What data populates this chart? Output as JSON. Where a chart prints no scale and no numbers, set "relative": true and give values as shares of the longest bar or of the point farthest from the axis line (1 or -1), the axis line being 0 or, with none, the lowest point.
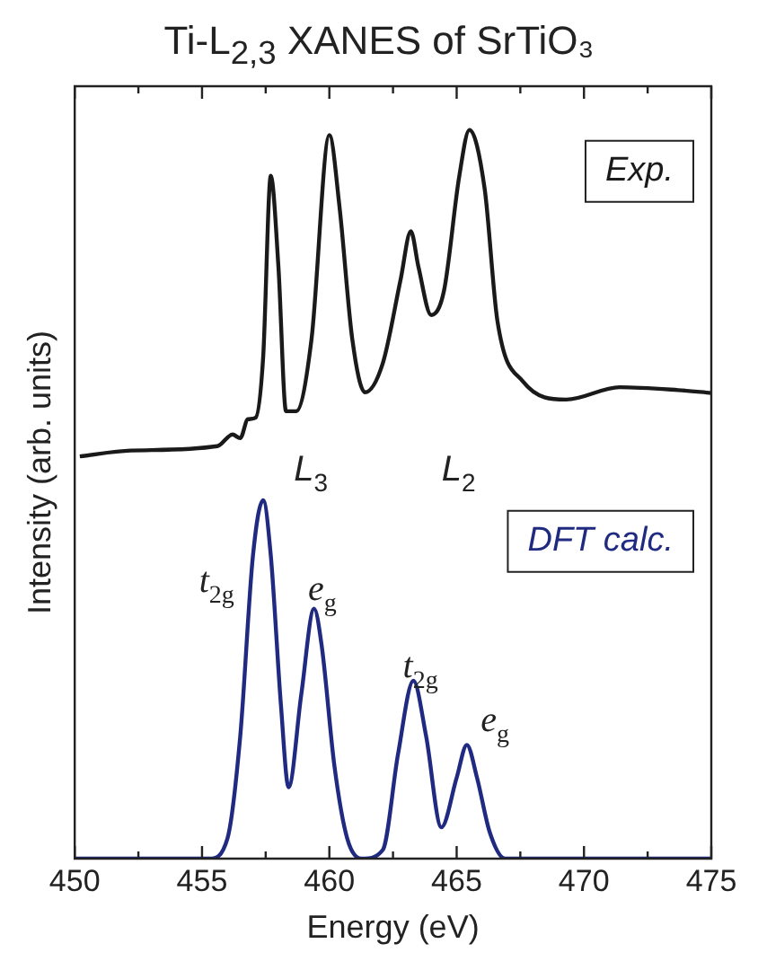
{
  "chart_data": {
    "type": "line",
    "title": "Ti-L$_{2,3}$ XANES of SrTiO₃",
    "xlabel": "Energy (eV)",
    "ylabel": "Intensity (arb. units)",
    "relative": true,
    "legend": false,
    "grid": false,
    "marker": "none",
    "line_style": "solid",
    "xlim": [
      450,
      475
    ],
    "xticks": [
      450,
      {
        "value": 452.5,
        "label": null
      },
      455,
      {
        "value": 457.5,
        "label": null
      },
      460,
      {
        "value": 462.5,
        "label": null
      },
      465,
      {
        "value": 467.5,
        "label": null
      },
      470,
      {
        "value": 472.5,
        "label": null
      },
      475
    ],
    "series": [
      {
        "name": "Exp.",
        "color": "#1a1a1a",
        "x": [
          450.2,
          452.2,
          455.6,
          456.2,
          456.5,
          456.8,
          457.1,
          457.4,
          457.7,
          458.0,
          458.3,
          458.7,
          459.3,
          460.0,
          460.4,
          460.9,
          461.4,
          462.1,
          462.8,
          463.2,
          463.5,
          464.0,
          464.5,
          465.1,
          465.5,
          466.1,
          466.6,
          467.6,
          469.3,
          471.4,
          473.7,
          475.0
        ],
        "values": [
          0.552,
          0.56,
          0.566,
          0.582,
          0.577,
          0.603,
          0.605,
          0.688,
          0.937,
          0.812,
          0.614,
          0.614,
          0.713,
          0.993,
          0.894,
          0.713,
          0.64,
          0.68,
          0.795,
          0.861,
          0.812,
          0.746,
          0.779,
          0.936,
          1,
          0.919,
          0.738,
          0.655,
          0.63,
          0.647,
          0.643,
          0.639
        ]
      },
      {
        "name": "DFT calc.",
        "color": "#1f2a80",
        "x": [
          450,
          455.3,
          456.0,
          456.5,
          457.0,
          457.4,
          457.7,
          458.1,
          458.4,
          458.9,
          459.4,
          459.7,
          460.2,
          460.7,
          461.3,
          462.1,
          462.7,
          463.3,
          463.8,
          464.4,
          465.0,
          465.4,
          465.8,
          466.3,
          466.9,
          475
        ],
        "values": [
          0,
          0,
          0.028,
          0.168,
          0.416,
          0.492,
          0.416,
          0.21,
          0.098,
          0.226,
          0.343,
          0.292,
          0.127,
          0.028,
          0,
          0.012,
          0.144,
          0.244,
          0.168,
          0.043,
          0.111,
          0.156,
          0.111,
          0.036,
          0,
          0
        ]
      }
    ],
    "annotations": [
      "L$_{3}$",
      "L$_{2}$",
      "t$_{2g}$",
      "e$_{g}$",
      "t$_{2g}$",
      "e$_{g}$"
    ]
  }
}
